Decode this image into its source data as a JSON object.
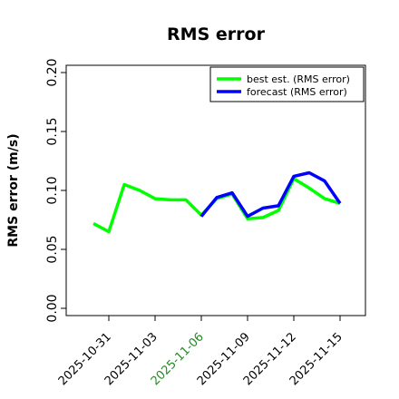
{
  "chart_data": {
    "type": "line",
    "title": "RMS error",
    "xlabel": "",
    "ylabel": "RMS error (m/s)",
    "ylim": [
      0.0,
      0.21
    ],
    "yticks": [
      "0.00",
      "0.05",
      "0.10",
      "0.15",
      "0.20"
    ],
    "xticks": [
      {
        "label": "2025-10-31",
        "x": "2025-10-31",
        "color": "#000000"
      },
      {
        "label": "2025-11-03",
        "x": "2025-11-03",
        "color": "#000000"
      },
      {
        "label": "2025-11-06",
        "x": "2025-11-06",
        "color": "#228B22"
      },
      {
        "label": "2025-11-09",
        "x": "2025-11-09",
        "color": "#000000"
      },
      {
        "label": "2025-11-12",
        "x": "2025-11-12",
        "color": "#000000"
      },
      {
        "label": "2025-11-15",
        "x": "2025-11-15",
        "color": "#000000"
      }
    ],
    "grid": false,
    "legend_position": "top-right",
    "series": [
      {
        "name": "best est. (RMS error)",
        "color": "#00ff00",
        "x": [
          "2025-10-30",
          "2025-10-31",
          "2025-11-01",
          "2025-11-02",
          "2025-11-03",
          "2025-11-04",
          "2025-11-05",
          "2025-11-06",
          "2025-11-07",
          "2025-11-08",
          "2025-11-09",
          "2025-11-10",
          "2025-11-11",
          "2025-11-12",
          "2025-11-13",
          "2025-11-14",
          "2025-11-15"
        ],
        "values": [
          0.072,
          0.065,
          0.105,
          0.1,
          0.093,
          0.092,
          0.092,
          0.079,
          0.093,
          0.097,
          0.076,
          0.077,
          0.083,
          0.11,
          0.102,
          0.093,
          0.089
        ]
      },
      {
        "name": "forecast (RMS error)",
        "color": "#0000ff",
        "x": [
          "2025-11-06",
          "2025-11-07",
          "2025-11-08",
          "2025-11-09",
          "2025-11-10",
          "2025-11-11",
          "2025-11-12",
          "2025-11-13",
          "2025-11-14",
          "2025-11-15"
        ],
        "values": [
          0.078,
          0.094,
          0.098,
          0.078,
          0.085,
          0.087,
          0.112,
          0.115,
          0.108,
          0.089
        ]
      }
    ]
  }
}
